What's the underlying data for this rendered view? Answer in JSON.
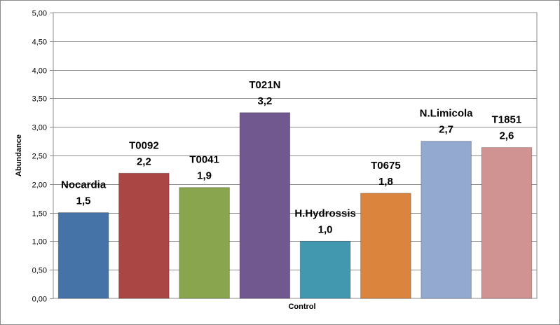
{
  "chart_data": {
    "type": "bar",
    "xlabel": "Control",
    "ylabel": "Abundance",
    "ylim": [
      0,
      5
    ],
    "ytick_step": 0.5,
    "ytick_labels": [
      "0,00",
      "0,50",
      "1,00",
      "1,50",
      "2,00",
      "2,50",
      "3,00",
      "3,50",
      "4,00",
      "4,50",
      "5,00"
    ],
    "grid": true,
    "legend": "none",
    "bars": [
      {
        "name": "Nocardia",
        "value": 1.5,
        "label": "1,5",
        "color": "#4572a7"
      },
      {
        "name": "T0092",
        "value": 2.19,
        "label": "2,2",
        "color": "#aa4643"
      },
      {
        "name": "T0041",
        "value": 1.94,
        "label": "1,9",
        "color": "#89a54e"
      },
      {
        "name": "T021N",
        "value": 3.25,
        "label": "3,2",
        "color": "#71588f"
      },
      {
        "name": "H.Hydrossis",
        "value": 1.0,
        "label": "1,0",
        "color": "#4198af"
      },
      {
        "name": "T0675",
        "value": 1.84,
        "label": "1,8",
        "color": "#db843d"
      },
      {
        "name": "N.Limicola",
        "value": 2.75,
        "label": "2,7",
        "color": "#93a9cf"
      },
      {
        "name": "T1851",
        "value": 2.64,
        "label": "2,6",
        "color": "#d19392"
      }
    ]
  }
}
